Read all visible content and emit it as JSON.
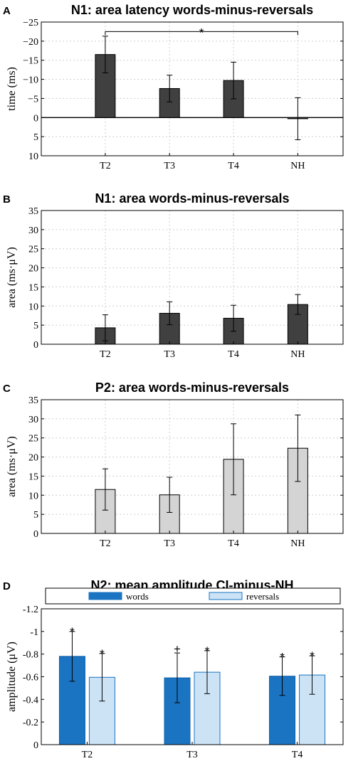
{
  "chart_data": [
    {
      "type": "bar",
      "panel": "A",
      "title": "N1: area latency words-minus-reversals",
      "ylabel": "time (ms)",
      "xlabel": "",
      "categories": [
        "T2",
        "T3",
        "T4",
        "NH"
      ],
      "values": [
        -16.5,
        -7.6,
        -9.7,
        0.3
      ],
      "errors": [
        4.8,
        3.5,
        4.8,
        5.5
      ],
      "ylim": [
        10,
        -25
      ],
      "y_reversed": true,
      "yticks": [
        -25,
        -20,
        -15,
        -10,
        -5,
        0,
        5,
        10
      ],
      "ytick_labels": [
        "−25",
        "−20",
        "−15",
        "−10",
        "−5",
        "0",
        "5",
        "10"
      ],
      "bar_color": "#404040",
      "zero_line": true,
      "grid": true,
      "significance": [
        {
          "from": "T2",
          "to": "NH",
          "label": "*",
          "y": -22.5
        }
      ]
    },
    {
      "type": "bar",
      "panel": "B",
      "title": "N1: area words-minus-reversals",
      "ylabel": "area (ms·μV)",
      "xlabel": "",
      "categories": [
        "T2",
        "T3",
        "T4",
        "NH"
      ],
      "values": [
        4.3,
        8.1,
        6.8,
        10.4
      ],
      "errors": [
        3.4,
        3.0,
        3.4,
        2.6
      ],
      "ylim": [
        0,
        35
      ],
      "yticks": [
        0,
        5,
        10,
        15,
        20,
        25,
        30,
        35
      ],
      "ytick_labels": [
        "0",
        "5",
        "10",
        "15",
        "20",
        "25",
        "30",
        "35"
      ],
      "bar_color": "#404040",
      "grid": true
    },
    {
      "type": "bar",
      "panel": "C",
      "title": "P2: area words-minus-reversals",
      "ylabel": "area (ms·μV)",
      "xlabel": "",
      "categories": [
        "T2",
        "T3",
        "T4",
        "NH"
      ],
      "values": [
        11.5,
        10.1,
        19.4,
        22.3
      ],
      "errors": [
        5.4,
        4.6,
        9.3,
        8.7
      ],
      "ylim": [
        0,
        35
      ],
      "yticks": [
        0,
        5,
        10,
        15,
        20,
        25,
        30,
        35
      ],
      "ytick_labels": [
        "0",
        "5",
        "10",
        "15",
        "20",
        "25",
        "30",
        "35"
      ],
      "bar_color": "#d4d4d4",
      "grid": true
    },
    {
      "type": "bar",
      "panel": "D",
      "title": "N2: mean amplitude CI-minus-NH",
      "ylabel": "amplitude (μV)",
      "xlabel": "",
      "categories": [
        "T2",
        "T3",
        "T4"
      ],
      "series": [
        {
          "name": "words",
          "values": [
            -0.78,
            -0.59,
            -0.605
          ],
          "errors": [
            0.22,
            0.22,
            0.17
          ],
          "color": "#1a74c2",
          "marks": [
            "*",
            "+",
            "*"
          ]
        },
        {
          "name": "reversals",
          "values": [
            -0.595,
            -0.64,
            -0.615
          ],
          "errors": [
            0.21,
            0.19,
            0.17
          ],
          "color": "#cce3f5",
          "marks": [
            "*",
            "*",
            "*"
          ]
        }
      ],
      "ylim": [
        0,
        -1.2
      ],
      "y_reversed": true,
      "yticks": [
        0,
        -0.2,
        -0.4,
        -0.6,
        -0.8,
        -1,
        -1.2
      ],
      "ytick_labels": [
        "0",
        "-0.2",
        "-0.4",
        "-0.6",
        "-0.8",
        "-1",
        "-1.2"
      ],
      "legend_position": "top",
      "grid": false
    }
  ]
}
